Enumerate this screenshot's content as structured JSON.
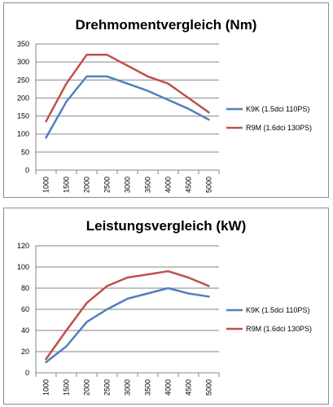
{
  "chart_data": [
    {
      "type": "line",
      "title": "Drehmomentvergleich (Nm)",
      "categories": [
        "1000",
        "1500",
        "2000",
        "2500",
        "3000",
        "3500",
        "4000",
        "4500",
        "5000"
      ],
      "series": [
        {
          "name": "K9K (1.5dci 110PS)",
          "color": "#4f81bd",
          "values": [
            90,
            190,
            260,
            260,
            240,
            220,
            195,
            170,
            140
          ]
        },
        {
          "name": "R9M (1.6dci 130PS)",
          "color": "#c0504d",
          "values": [
            135,
            240,
            320,
            320,
            290,
            260,
            240,
            200,
            160
          ]
        }
      ],
      "ylim": [
        0,
        350
      ],
      "yticks": [
        0,
        50,
        100,
        150,
        200,
        250,
        300,
        350
      ],
      "grid": true,
      "legend": "right"
    },
    {
      "type": "line",
      "title": "Leistungsvergleich (kW)",
      "categories": [
        "1000",
        "1500",
        "2000",
        "2500",
        "3000",
        "3500",
        "4000",
        "4500",
        "5000"
      ],
      "series": [
        {
          "name": "K9K (1.5dci 110PS)",
          "color": "#4f81bd",
          "values": [
            10,
            25,
            48,
            60,
            70,
            75,
            80,
            75,
            72
          ]
        },
        {
          "name": "R9M (1.6dci 130PS)",
          "color": "#c0504d",
          "values": [
            13,
            40,
            66,
            82,
            90,
            93,
            96,
            90,
            82
          ]
        }
      ],
      "ylim": [
        0,
        120
      ],
      "yticks": [
        0,
        20,
        40,
        60,
        80,
        100,
        120
      ],
      "grid": true,
      "legend": "right"
    }
  ]
}
